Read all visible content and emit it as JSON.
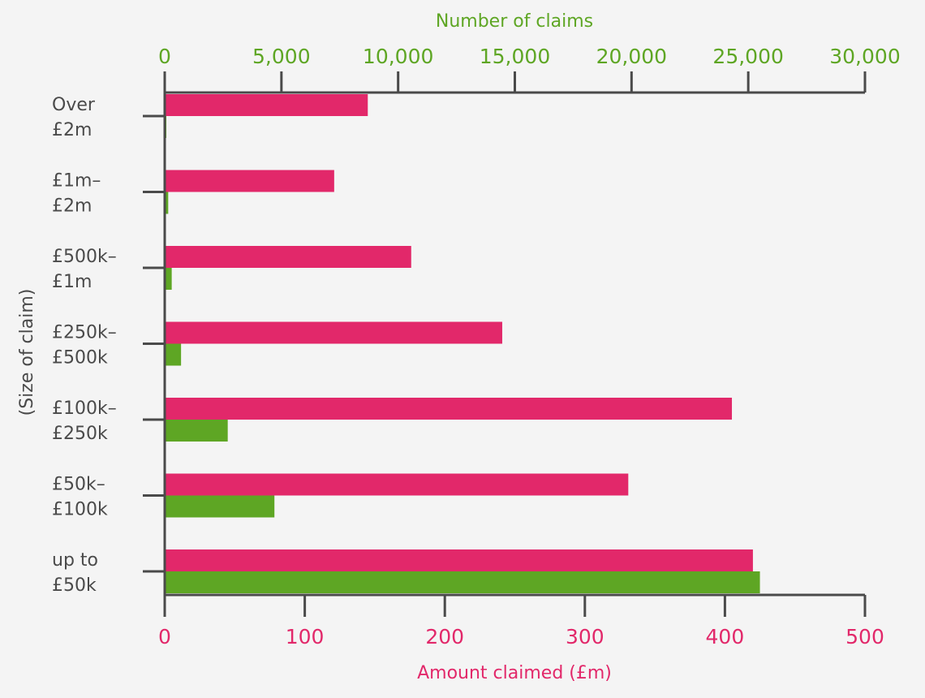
{
  "chart_data": {
    "type": "bar",
    "orientation": "horizontal",
    "categories": [
      [
        "Over",
        "£2m"
      ],
      [
        "£1m–",
        "£2m"
      ],
      [
        "£500k–",
        "£1m"
      ],
      [
        "£250k–",
        "£500k"
      ],
      [
        "£100k–",
        "£250k"
      ],
      [
        "£50k–",
        "£100k"
      ],
      [
        "up to",
        "£50k"
      ]
    ],
    "series": [
      {
        "axis": "bottom",
        "color": "#e2286a",
        "values": [
          145,
          121,
          176,
          241,
          405,
          331,
          420
        ]
      },
      {
        "axis": "top",
        "color": "#5ea624",
        "values": [
          50,
          150,
          300,
          700,
          2700,
          4700,
          25500
        ]
      }
    ],
    "top_axis": {
      "label": "Number of claims",
      "range": [
        0,
        30000
      ],
      "ticks": [
        "0",
        "5,000",
        "10,000",
        "15,000",
        "20,000",
        "25,000",
        "30,000"
      ],
      "color": "#5ea624"
    },
    "bottom_axis": {
      "label": "Amount claimed (£m)",
      "range": [
        0,
        500
      ],
      "ticks": [
        "0",
        "100",
        "200",
        "300",
        "400",
        "500"
      ],
      "color": "#e2286a"
    },
    "ylabel": "(Size of claim)",
    "text_color": "#4a4a4a",
    "axis_color": "#4a4a4a",
    "grid": false
  }
}
